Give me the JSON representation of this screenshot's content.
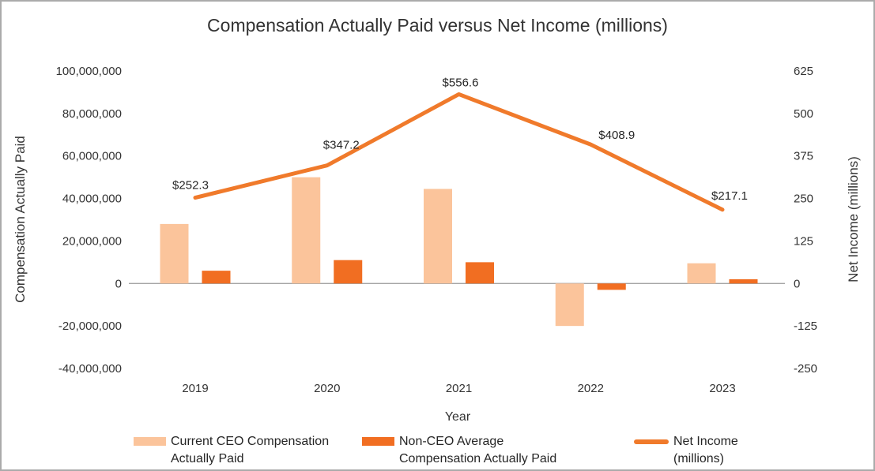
{
  "chart_data": {
    "type": "combo-bar-line",
    "title": "Compensation Actually Paid versus Net Income (millions)",
    "categories": [
      "2019",
      "2020",
      "2021",
      "2022",
      "2023"
    ],
    "xlabel": "Year",
    "grid": "zero-line-only",
    "legend_position": "bottom",
    "left_axis": {
      "label": "Compensation Actually Paid",
      "ticks": [
        "100,000,000",
        "80,000,000",
        "60,000,000",
        "40,000,000",
        "20,000,000",
        "0",
        "-20,000,000",
        "-40,000,000"
      ],
      "tick_values": [
        100000000,
        80000000,
        60000000,
        40000000,
        20000000,
        0,
        -20000000,
        -40000000
      ],
      "range": [
        -40000000,
        100000000
      ]
    },
    "right_axis": {
      "label": "Net Income (millions)",
      "ticks": [
        "625",
        "500",
        "375",
        "250",
        "125",
        "0",
        "-125",
        "-250"
      ],
      "tick_values": [
        625,
        500,
        375,
        250,
        125,
        0,
        -125,
        -250
      ],
      "range": [
        -250,
        625
      ]
    },
    "series": [
      {
        "name": "Current CEO Compensation Actually Paid",
        "type": "bar",
        "axis": "left",
        "color": "#FBC49B",
        "values": [
          28000000,
          50000000,
          44500000,
          -20000000,
          9500000
        ]
      },
      {
        "name": "Non-CEO Average Compensation Actually Paid",
        "type": "bar",
        "axis": "left",
        "color": "#F16E22",
        "values": [
          6000000,
          11000000,
          10000000,
          -3000000,
          2000000
        ]
      },
      {
        "name": "Net Income (millions)",
        "type": "line",
        "axis": "right",
        "color": "#F07A2B",
        "values": [
          252.3,
          347.2,
          556.6,
          408.9,
          217.1
        ],
        "labels": [
          "$252.3",
          "$347.2",
          "$556.6",
          "$408.9",
          "$217.1"
        ]
      }
    ],
    "zero_line_color": "#A6A6A6",
    "text_color": "#333333"
  }
}
